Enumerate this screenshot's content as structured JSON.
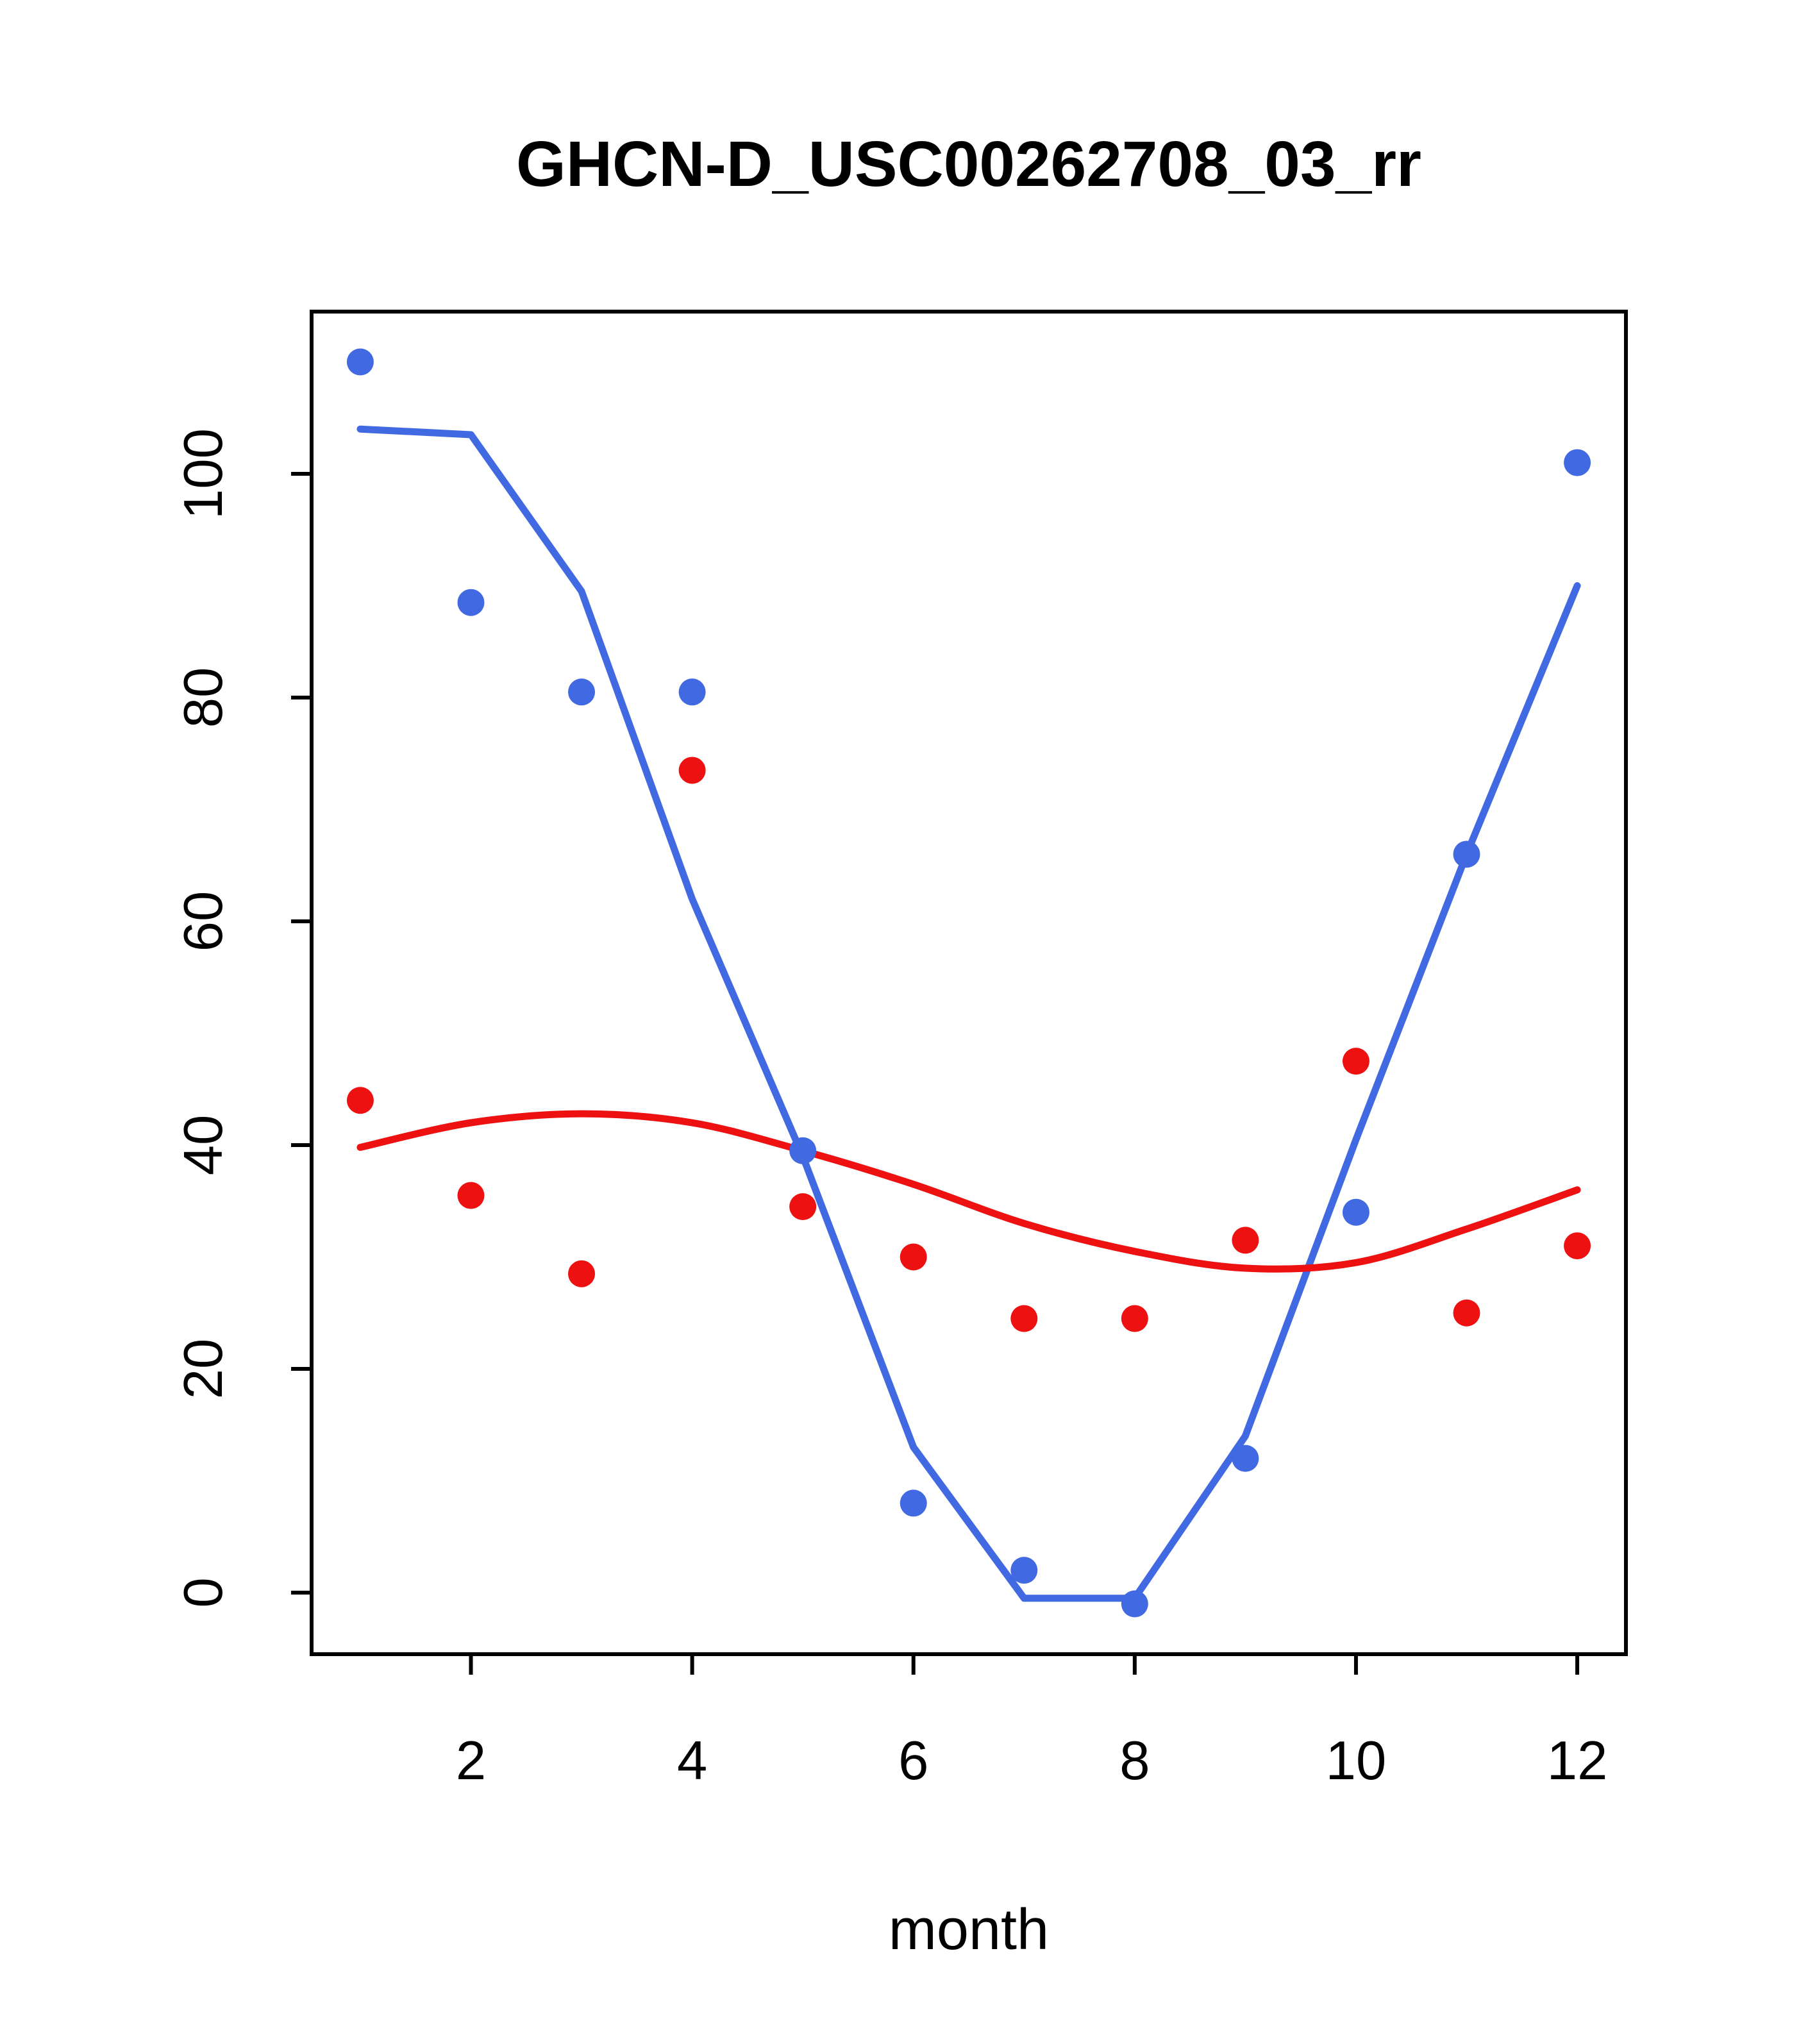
{
  "chart_data": {
    "type": "scatter",
    "title": "GHCN-D_USC00262708_03_rr",
    "xlabel": "month",
    "ylabel": "",
    "x": [
      1,
      2,
      3,
      4,
      5,
      6,
      7,
      8,
      9,
      10,
      11,
      12
    ],
    "xticks": [
      2,
      4,
      6,
      8,
      10,
      12
    ],
    "yticks": [
      0,
      20,
      40,
      60,
      80,
      100
    ],
    "xlim": [
      0.56,
      12.44
    ],
    "ylim": [
      -5.5,
      114.5
    ],
    "grid": false,
    "legend": "none",
    "colors": {
      "blue": "#4169e1",
      "red": "#ee1111",
      "axis": "#000000"
    },
    "series": [
      {
        "name": "blue-line",
        "kind": "line",
        "color": "#4169e1",
        "smooth": false,
        "values": [
          104,
          103.5,
          89.5,
          62,
          39,
          13,
          -0.5,
          -0.5,
          14,
          40.5,
          66,
          90
        ]
      },
      {
        "name": "red-line",
        "kind": "line",
        "color": "#ee1111",
        "smooth": true,
        "values": [
          39.8,
          42,
          42.8,
          42,
          39.5,
          36.5,
          33,
          30.5,
          29,
          29.5,
          32.5,
          36
        ]
      },
      {
        "name": "blue-points",
        "kind": "points",
        "color": "#4169e1",
        "values": [
          110,
          88.5,
          80.5,
          80.5,
          39.5,
          8,
          2,
          -1,
          12,
          34,
          66,
          101
        ]
      },
      {
        "name": "red-points",
        "kind": "points",
        "color": "#ee1111",
        "values": [
          44,
          35.5,
          28.5,
          73.5,
          34.5,
          30,
          24.5,
          24.5,
          31.5,
          47.5,
          25,
          31
        ]
      }
    ]
  }
}
